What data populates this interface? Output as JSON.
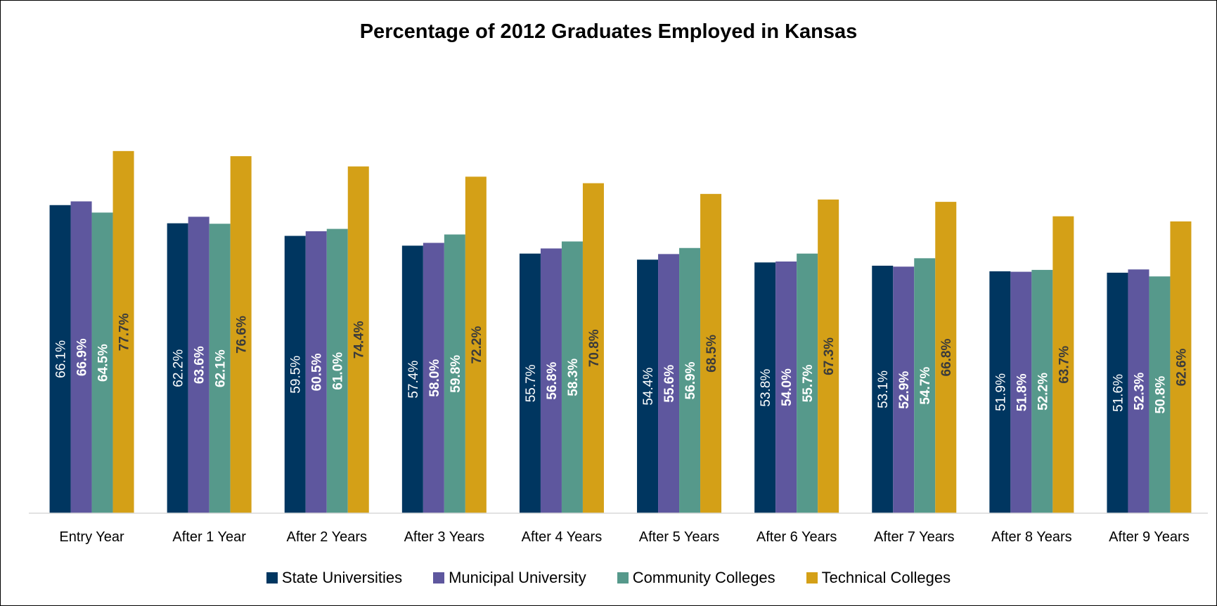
{
  "chart_data": {
    "type": "bar",
    "title": "Percentage of 2012 Graduates Employed in Kansas",
    "xlabel": "",
    "ylabel": "",
    "ylim": [
      0,
      100
    ],
    "grid": false,
    "legend_position": "bottom",
    "categories": [
      "Entry Year",
      "After 1 Year",
      "After 2 Years",
      "After 3 Years",
      "After 4 Years",
      "After 5 Years",
      "After 6 Years",
      "After 7 Years",
      "After 8 Years",
      "After 9 Years"
    ],
    "series": [
      {
        "name": "State Universities",
        "color": "#003660",
        "label_color": "#ffffff",
        "label_bold": false,
        "values": [
          66.1,
          62.2,
          59.5,
          57.4,
          55.7,
          54.4,
          53.8,
          53.1,
          51.9,
          51.6
        ],
        "labels": [
          "66.1%",
          "62.2%",
          "59.5%",
          "57.4%",
          "55.7%",
          "54.4%",
          "53.8%",
          "53.1%",
          "51.9%",
          "51.6%"
        ]
      },
      {
        "name": "Municipal University",
        "color": "#5e579e",
        "label_color": "#ffffff",
        "label_bold": true,
        "values": [
          66.9,
          63.6,
          60.5,
          58.0,
          56.8,
          55.6,
          54.0,
          52.9,
          51.8,
          52.3
        ],
        "labels": [
          "66.9%",
          "63.6%",
          "60.5%",
          "58.0%",
          "56.8%",
          "55.6%",
          "54.0%",
          "52.9%",
          "51.8%",
          "52.3%"
        ]
      },
      {
        "name": "Community Colleges",
        "color": "#56998b",
        "label_color": "#ffffff",
        "label_bold": true,
        "values": [
          64.5,
          62.1,
          61.0,
          59.8,
          58.3,
          56.9,
          55.7,
          54.7,
          52.2,
          50.8
        ],
        "labels": [
          "64.5%",
          "62.1%",
          "61.0%",
          "59.8%",
          "58.3%",
          "56.9%",
          "55.7%",
          "54.7%",
          "52.2%",
          "50.8%"
        ]
      },
      {
        "name": "Technical Colleges",
        "color": "#d4a017",
        "label_color": "#3b3b3b",
        "label_bold": true,
        "values": [
          77.7,
          76.6,
          74.4,
          72.2,
          70.8,
          68.5,
          67.3,
          66.8,
          63.7,
          62.6
        ],
        "labels": [
          "77.7%",
          "76.6%",
          "74.4%",
          "72.2%",
          "70.8%",
          "68.5%",
          "67.3%",
          "66.8%",
          "63.7%",
          "62.6%"
        ]
      }
    ]
  }
}
